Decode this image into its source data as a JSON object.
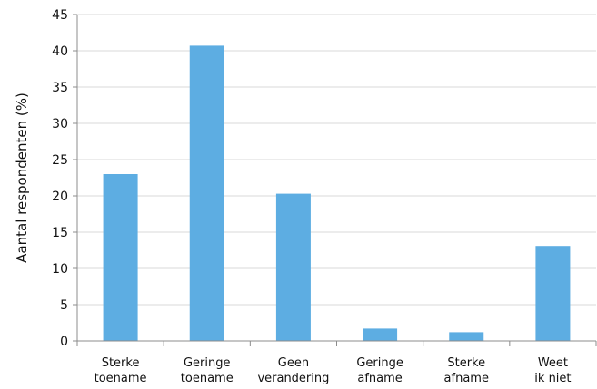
{
  "chart_data": {
    "type": "bar",
    "categories": [
      [
        "Sterke",
        "toename"
      ],
      [
        "Geringe",
        "toename"
      ],
      [
        "Geen",
        "verandering"
      ],
      [
        "Geringe",
        "afname"
      ],
      [
        "Sterke",
        "afname"
      ],
      [
        "Weet",
        "ik niet"
      ]
    ],
    "values": [
      23.0,
      40.7,
      20.3,
      1.7,
      1.2,
      13.1
    ],
    "ylabel": "Aantal respondenten (%)",
    "xlabel": "",
    "ylim": [
      0,
      45
    ],
    "yticks": [
      0,
      5,
      10,
      15,
      20,
      25,
      30,
      35,
      40,
      45
    ],
    "grid": true,
    "bar_color": "#5dade2"
  }
}
